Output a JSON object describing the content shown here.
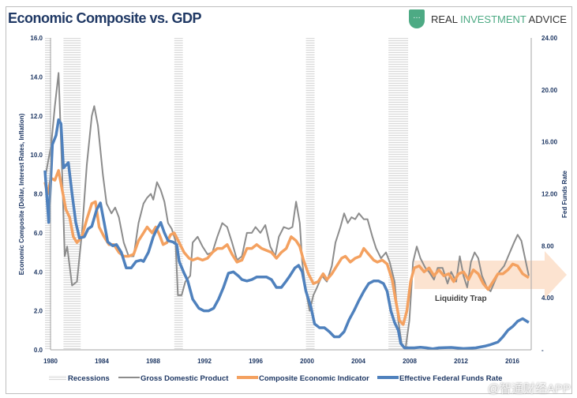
{
  "chart_data": {
    "type": "line",
    "title": "Economic Composite vs. GDP",
    "ylabel_left": "Economic Composite (Dollar, Interest Rates, Inflation)",
    "ylabel_right": "Fed Funds Rate",
    "ylim_left": [
      0,
      16
    ],
    "ylim_right": [
      0,
      24
    ],
    "xlim": [
      1980,
      2019.5
    ],
    "x_ticks": [
      "1980",
      "1984",
      "1988",
      "1992",
      "1996",
      "2000",
      "2004",
      "2008",
      "2012",
      "2016"
    ],
    "y_ticks_left": [
      "0.0",
      "2.0",
      "4.0",
      "6.0",
      "8.0",
      "10.0",
      "12.0",
      "14.0",
      "16.0"
    ],
    "y_ticks_right": [
      "-",
      "4.00",
      "8.00",
      "12.00",
      "16.00",
      "20.00",
      "24.00"
    ],
    "grid": false,
    "legend_position": "bottom",
    "legend": [
      "Recessions",
      "Gross Domestic Product",
      "Composite Economic Indicator",
      "Effective Federal Funds Rate"
    ],
    "annotation": "Liquidity Trap",
    "recessions": [
      [
        1980.0,
        1980.5
      ],
      [
        1981.5,
        1982.9
      ],
      [
        1990.5,
        1991.2
      ],
      [
        2001.2,
        2001.9
      ],
      [
        2007.9,
        2009.5
      ]
    ],
    "series": [
      {
        "name": "Gross Domestic Product",
        "axis": "left",
        "color": "#8c8c8c",
        "x": [
          1980,
          1980.5,
          1980.8,
          1981.1,
          1981.4,
          1981.6,
          1981.8,
          1982.2,
          1982.6,
          1983.0,
          1983.4,
          1983.8,
          1984.0,
          1984.3,
          1984.7,
          1985.0,
          1985.4,
          1985.7,
          1986.0,
          1986.4,
          1986.8,
          1987.2,
          1987.6,
          1988.0,
          1988.3,
          1988.6,
          1988.8,
          1989.1,
          1989.4,
          1989.7,
          1990.0,
          1990.3,
          1990.6,
          1990.8,
          1991.1,
          1991.4,
          1991.8,
          1992.0,
          1992.4,
          1992.8,
          1993.2,
          1993.6,
          1994.0,
          1994.4,
          1994.8,
          1995.2,
          1995.6,
          1996.0,
          1996.4,
          1996.8,
          1997.1,
          1997.5,
          1997.9,
          1998.3,
          1998.7,
          1999.0,
          1999.4,
          1999.8,
          2000.1,
          2000.4,
          2000.7,
          2000.9,
          2001.2,
          2001.5,
          2001.8,
          2002.1,
          2002.5,
          2002.9,
          2003.3,
          2003.6,
          2004.0,
          2004.3,
          2004.6,
          2004.9,
          2005.2,
          2005.5,
          2005.9,
          2006.2,
          2006.6,
          2006.9,
          2007.3,
          2007.7,
          2008.0,
          2008.4,
          2008.7,
          2009.0,
          2009.3,
          2009.6,
          2009.9,
          2010.2,
          2010.5,
          2010.9,
          2011.2,
          2011.6,
          2011.9,
          2012.3,
          2012.7,
          2013.0,
          2013.4,
          2013.7,
          2014.0,
          2014.3,
          2014.6,
          2014.9,
          2015.2,
          2015.5,
          2015.9,
          2016.2,
          2016.6,
          2016.9,
          2017.3,
          2017.7,
          2018.1,
          2018.4,
          2018.7,
          2019.0,
          2019.3
        ],
        "y": [
          8.8,
          10.5,
          12.5,
          14.2,
          9.0,
          4.8,
          5.3,
          3.3,
          3.5,
          6.0,
          9.5,
          12.0,
          12.5,
          11.5,
          9.0,
          7.5,
          7.0,
          7.3,
          6.8,
          5.5,
          4.8,
          4.8,
          6.5,
          7.5,
          7.8,
          8.0,
          7.7,
          8.6,
          8.2,
          7.6,
          6.5,
          6.2,
          5.6,
          2.8,
          2.8,
          3.5,
          3.8,
          5.5,
          5.8,
          5.3,
          4.9,
          5.0,
          5.8,
          6.5,
          6.3,
          5.5,
          4.6,
          4.8,
          6.0,
          6.0,
          6.3,
          6.0,
          6.4,
          5.3,
          4.8,
          5.8,
          6.3,
          6.2,
          6.3,
          7.6,
          6.5,
          4.5,
          3.0,
          2.0,
          2.8,
          3.2,
          3.8,
          3.5,
          4.3,
          5.5,
          6.3,
          7.0,
          6.5,
          6.8,
          6.7,
          7.0,
          6.7,
          6.7,
          5.8,
          5.2,
          4.7,
          5.0,
          4.5,
          3.5,
          1.5,
          0.2,
          0.1,
          1.5,
          4.5,
          5.3,
          4.7,
          4.2,
          4.0,
          3.6,
          4.2,
          4.2,
          3.4,
          4.0,
          3.5,
          4.8,
          3.8,
          3.2,
          4.5,
          5.0,
          4.7,
          3.8,
          3.2,
          3.0,
          3.6,
          4.0,
          4.3,
          4.9,
          5.5,
          5.9,
          5.6,
          4.7,
          3.8
        ]
      },
      {
        "name": "Composite Economic Indicator",
        "axis": "left",
        "color": "#f4a160",
        "x": [
          1980,
          1980.2,
          1980.5,
          1980.8,
          1981.1,
          1981.4,
          1981.7,
          1982.0,
          1982.3,
          1982.6,
          1983.0,
          1983.4,
          1983.8,
          1984.1,
          1984.4,
          1984.8,
          1985.2,
          1985.6,
          1986.0,
          1986.4,
          1986.8,
          1987.2,
          1987.6,
          1988.0,
          1988.3,
          1988.7,
          1989.0,
          1989.3,
          1989.6,
          1989.9,
          1990.2,
          1990.5,
          1990.9,
          1991.3,
          1991.7,
          1992.0,
          1992.4,
          1992.8,
          1993.2,
          1993.6,
          1994.0,
          1994.4,
          1994.8,
          1995.2,
          1995.6,
          1996.0,
          1996.4,
          1996.8,
          1997.2,
          1997.6,
          1998.0,
          1998.4,
          1998.8,
          1999.2,
          1999.6,
          2000.0,
          2000.4,
          2000.7,
          2001.0,
          2001.4,
          2001.8,
          2002.2,
          2002.6,
          2002.9,
          2003.3,
          2003.7,
          2004.1,
          2004.4,
          2004.8,
          2005.2,
          2005.6,
          2005.9,
          2006.3,
          2006.7,
          2007.0,
          2007.4,
          2007.8,
          2008.2,
          2008.5,
          2008.8,
          2009.1,
          2009.4,
          2009.7,
          2010.0,
          2010.4,
          2010.8,
          2011.2,
          2011.6,
          2012.0,
          2012.4,
          2012.8,
          2013.2,
          2013.6,
          2014.0,
          2014.4,
          2014.8,
          2015.2,
          2015.6,
          2016.0,
          2016.4,
          2016.8,
          2017.2,
          2017.6,
          2018.0,
          2018.4,
          2018.8,
          2019.3
        ],
        "y": [
          8.6,
          8.0,
          8.8,
          8.7,
          9.2,
          8.2,
          7.2,
          6.8,
          5.8,
          5.5,
          5.8,
          6.7,
          7.5,
          7.6,
          6.3,
          5.8,
          5.4,
          5.4,
          5.0,
          4.8,
          4.8,
          4.9,
          5.6,
          6.0,
          6.3,
          6.0,
          6.3,
          5.9,
          5.4,
          5.5,
          5.9,
          6.0,
          5.5,
          5.0,
          4.7,
          4.6,
          4.7,
          4.6,
          4.7,
          5.0,
          5.2,
          5.2,
          5.4,
          4.9,
          4.5,
          4.6,
          5.2,
          5.2,
          5.4,
          5.2,
          5.1,
          5.0,
          4.7,
          5.0,
          5.2,
          5.8,
          5.6,
          5.3,
          4.6,
          3.9,
          3.4,
          3.5,
          3.9,
          3.6,
          3.9,
          4.3,
          4.7,
          4.8,
          4.5,
          4.7,
          4.8,
          5.2,
          4.9,
          4.6,
          4.5,
          4.6,
          4.4,
          3.6,
          2.5,
          1.5,
          1.3,
          2.0,
          3.5,
          4.2,
          4.3,
          4.0,
          4.2,
          3.8,
          4.1,
          3.8,
          3.9,
          3.5,
          3.9,
          4.0,
          3.6,
          4.1,
          3.9,
          3.4,
          3.1,
          3.5,
          3.9,
          3.9,
          4.1,
          4.4,
          4.3,
          3.9,
          3.7
        ]
      },
      {
        "name": "Effective Federal Funds Rate",
        "axis": "right",
        "color": "#4f81bd",
        "x": [
          1980,
          1980.3,
          1980.6,
          1980.9,
          1981.1,
          1981.3,
          1981.5,
          1981.9,
          1982.2,
          1982.5,
          1982.8,
          1983.2,
          1983.5,
          1983.8,
          1984.2,
          1984.5,
          1984.8,
          1985.1,
          1985.5,
          1985.8,
          1986.2,
          1986.6,
          1987.0,
          1987.4,
          1987.8,
          1988.0,
          1988.4,
          1988.8,
          1989.1,
          1989.4,
          1989.7,
          1990.0,
          1990.4,
          1990.7,
          1990.9,
          1991.3,
          1991.6,
          1992.0,
          1992.5,
          1992.9,
          1993.3,
          1993.7,
          1994.1,
          1994.5,
          1994.9,
          1995.3,
          1995.7,
          1996.0,
          1996.4,
          1996.8,
          1997.2,
          1997.6,
          1998.0,
          1998.4,
          1998.8,
          1999.2,
          1999.6,
          1999.9,
          2000.3,
          2000.6,
          2000.9,
          2001.2,
          2001.6,
          2001.9,
          2002.3,
          2002.7,
          2003.1,
          2003.5,
          2003.9,
          2004.3,
          2004.7,
          2005.1,
          2005.5,
          2005.9,
          2006.3,
          2006.7,
          2007.1,
          2007.5,
          2007.8,
          2008.1,
          2008.4,
          2008.7,
          2008.9,
          2009.2,
          2009.6,
          2010.0,
          2010.5,
          2011.0,
          2011.5,
          2012.0,
          2013.0,
          2014.0,
          2015.0,
          2015.8,
          2016.2,
          2016.8,
          2017.2,
          2017.6,
          2018.0,
          2018.4,
          2018.8,
          2019.3
        ],
        "y": [
          13.8,
          9.8,
          15.8,
          16.5,
          17.7,
          17.4,
          14.0,
          14.4,
          12.0,
          9.8,
          8.6,
          8.7,
          9.3,
          9.5,
          10.8,
          11.3,
          9.8,
          8.3,
          8.0,
          8.1,
          7.5,
          6.3,
          6.3,
          6.8,
          6.9,
          6.8,
          7.5,
          8.7,
          9.3,
          9.8,
          9.0,
          8.4,
          8.3,
          8.1,
          6.8,
          5.9,
          5.3,
          3.9,
          3.2,
          3.0,
          3.0,
          3.2,
          3.9,
          4.8,
          5.9,
          6.0,
          5.7,
          5.4,
          5.3,
          5.4,
          5.6,
          5.6,
          5.6,
          5.4,
          4.8,
          4.8,
          5.3,
          5.7,
          6.3,
          6.5,
          6.0,
          4.5,
          3.3,
          2.0,
          1.7,
          1.7,
          1.4,
          1.0,
          1.0,
          1.4,
          2.3,
          3.0,
          3.8,
          4.5,
          5.1,
          5.3,
          5.3,
          5.1,
          4.5,
          3.0,
          2.1,
          1.5,
          0.5,
          0.15,
          0.15,
          0.15,
          0.2,
          0.15,
          0.08,
          0.15,
          0.18,
          0.1,
          0.15,
          0.3,
          0.4,
          0.6,
          1.0,
          1.5,
          1.8,
          2.2,
          2.4,
          2.1
        ]
      }
    ]
  },
  "branding": {
    "logo_part1": "REAL ",
    "logo_part2": "INVESTMENT",
    "logo_part3": " ADVICE",
    "logo_glyph": "…"
  },
  "watermark": "@智通财经APP"
}
